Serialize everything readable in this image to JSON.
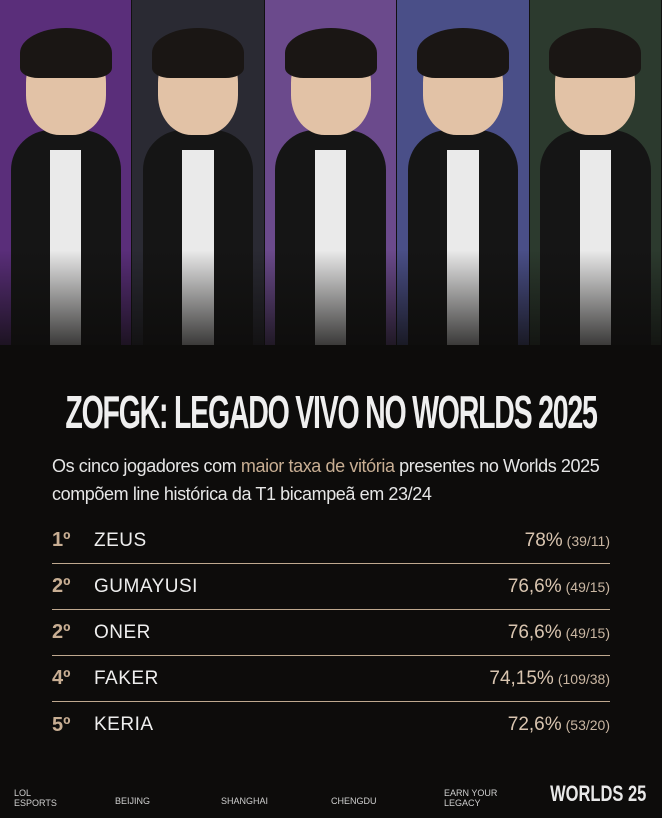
{
  "photo_colors": [
    "#5a2e7a",
    "#2a2a33",
    "#6b4a8c",
    "#4a4f88",
    "#2c3a2e"
  ],
  "title": "ZOFGK: LEGADO VIVO NO WORLDS 2025",
  "subtitle": {
    "pre": "Os cinco jogadores com ",
    "highlight": "maior taxa de vitória",
    "post": " presentes no Worlds 2025 compõem line histórica da T1 bicampeã em 23/24"
  },
  "accent": "#c8ae93",
  "players": [
    {
      "rank": "1º",
      "name": "ZEUS",
      "rate": "78%",
      "record": "(39/11)"
    },
    {
      "rank": "2º",
      "name": "GUMAYUSI",
      "rate": "76,6%",
      "record": "(49/15)"
    },
    {
      "rank": "2º",
      "name": "ONER",
      "rate": "76,6%",
      "record": "(49/15)"
    },
    {
      "rank": "4º",
      "name": "FAKER",
      "rate": "74,15%",
      "record": "(109/38)"
    },
    {
      "rank": "5º",
      "name": "KERIA",
      "rate": "72,6%",
      "record": "(53/20)"
    }
  ],
  "footer": {
    "lol": "LOL",
    "esports": "ESPORTS",
    "beijing": "BEIJING",
    "shanghai": "SHANGHAI",
    "chengdu": "CHENGDU",
    "earn": "EARN YOUR",
    "legacy": "LEGACY",
    "logo": "WORLDS 25"
  }
}
